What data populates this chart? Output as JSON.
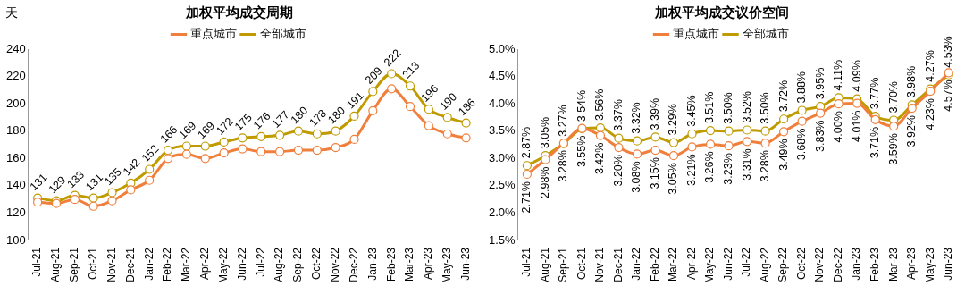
{
  "chart_data": [
    {
      "type": "line",
      "title": "加权平均成交周期",
      "ylabel": "天",
      "categories": [
        "Jul-21",
        "Aug-21",
        "Sep-21",
        "Oct-21",
        "Nov-21",
        "Dec-21",
        "Jan-22",
        "Feb-22",
        "Mar-22",
        "Apr-22",
        "May-22",
        "Jun-22",
        "Jul-22",
        "Aug-22",
        "Sep-22",
        "Oct-22",
        "Nov-22",
        "Dec-22",
        "Jan-23",
        "Feb-23",
        "Mar-23",
        "Apr-23",
        "May-23",
        "Jun-23"
      ],
      "series": [
        {
          "name": "重点城市",
          "color": "#f07f3c",
          "values": [
            128,
            127,
            130,
            125,
            129,
            137,
            144,
            160,
            163,
            160,
            164,
            167,
            165,
            165,
            166,
            166,
            168,
            174,
            195,
            211,
            198,
            184,
            178,
            175
          ]
        },
        {
          "name": "全部城市",
          "color": "#bf9b00",
          "values": [
            131,
            129,
            133,
            131,
            135,
            142,
            152,
            166,
            169,
            169,
            172,
            175,
            176,
            177,
            180,
            178,
            180,
            191,
            209,
            222,
            213,
            196,
            190,
            186
          ],
          "value_labels": [
            "131",
            "129",
            "133",
            "131",
            "135",
            "142",
            "152",
            "166",
            "169",
            "169",
            "172",
            "175",
            "176",
            "177",
            "180",
            "178",
            "180",
            "191",
            "209",
            "222",
            "213",
            "196",
            "190",
            "186"
          ]
        }
      ],
      "ylim": [
        100,
        240
      ],
      "yticks": [
        100,
        120,
        140,
        160,
        180,
        200,
        220,
        240
      ],
      "grid": false,
      "legend": "top",
      "marker": "circle",
      "line_style": "solid"
    },
    {
      "type": "line",
      "title": "加权平均成交议价空间",
      "categories": [
        "Jul-21",
        "Aug-21",
        "Sep-21",
        "Oct-21",
        "Nov-21",
        "Dec-21",
        "Jan-22",
        "Feb-22",
        "Mar-22",
        "Apr-22",
        "May-22",
        "Jun-22",
        "Jul-22",
        "Aug-22",
        "Sep-22",
        "Oct-22",
        "Nov-22",
        "Dec-22",
        "Jan-23",
        "Feb-23",
        "Mar-23",
        "Apr-23",
        "May-23",
        "Jun-23"
      ],
      "series": [
        {
          "name": "重点城市",
          "color": "#f07f3c",
          "values": [
            2.71,
            2.98,
            3.28,
            3.55,
            3.42,
            3.2,
            3.08,
            3.15,
            3.05,
            3.21,
            3.26,
            3.23,
            3.31,
            3.28,
            3.49,
            3.68,
            3.83,
            4.0,
            4.01,
            3.71,
            3.59,
            3.92,
            4.23,
            4.57
          ],
          "value_labels": [
            "2.71%",
            "2.98%",
            "3.28%",
            "3.55%",
            "3.42%",
            "3.20%",
            "3.08%",
            "3.15%",
            "3.05%",
            "3.21%",
            "3.26%",
            "3.23%",
            "3.31%",
            "3.28%",
            "3.49%",
            "3.68%",
            "3.83%",
            "4.00%",
            "4.01%",
            "3.71%",
            "3.59%",
            "3.92%",
            "4.23%",
            "4.57%"
          ]
        },
        {
          "name": "全部城市",
          "color": "#bf9b00",
          "values": [
            2.87,
            3.05,
            3.27,
            3.54,
            3.56,
            3.37,
            3.32,
            3.39,
            3.29,
            3.45,
            3.51,
            3.5,
            3.52,
            3.5,
            3.72,
            3.88,
            3.95,
            4.11,
            4.09,
            3.77,
            3.7,
            3.98,
            4.27,
            4.53
          ],
          "value_labels": [
            "2.87%",
            "3.05%",
            "3.27%",
            "3.54%",
            "3.56%",
            "3.37%",
            "3.32%",
            "3.39%",
            "3.29%",
            "3.45%",
            "3.51%",
            "3.50%",
            "3.52%",
            "3.50%",
            "3.72%",
            "3.88%",
            "3.95%",
            "4.11%",
            "4.09%",
            "3.77%",
            "3.70%",
            "3.98%",
            "4.27%",
            "4.53%"
          ]
        }
      ],
      "ylim": [
        1.5,
        5.0
      ],
      "yticks": [
        {
          "value": 1.5,
          "label": "1.5%"
        },
        {
          "value": 2.0,
          "label": "2.0%"
        },
        {
          "value": 2.5,
          "label": "2.5%"
        },
        {
          "value": 3.0,
          "label": "3.0%"
        },
        {
          "value": 3.5,
          "label": "3.5%"
        },
        {
          "value": 4.0,
          "label": "4.0%"
        },
        {
          "value": 4.5,
          "label": "4.5%"
        },
        {
          "value": 5.0,
          "label": "5.0%"
        }
      ],
      "grid": false,
      "legend": "top",
      "marker": "circle",
      "line_style": "solid"
    }
  ]
}
